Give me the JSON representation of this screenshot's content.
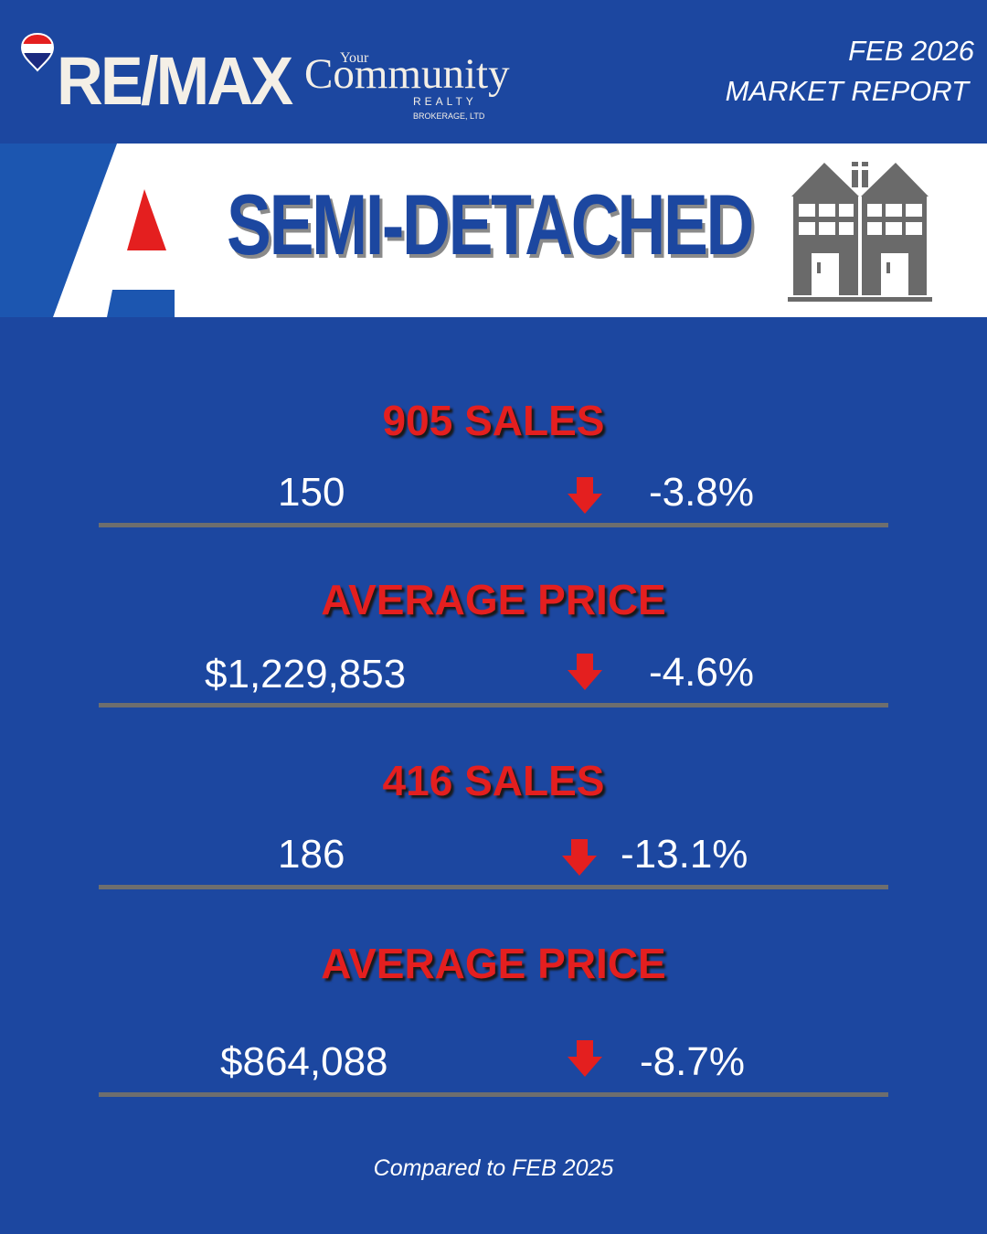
{
  "header": {
    "brand": "RE/MAX",
    "brand_sub_your": "Your",
    "brand_sub_community": "Community",
    "brand_sub_realty": "REALTY",
    "brand_sub_brokerage": "BROKERAGE, LTD",
    "report_date": "FEB 2026",
    "report_title": "MARKET REPORT"
  },
  "banner": {
    "title": "SEMI-DETACHED",
    "icon": "semi-detached-house-icon"
  },
  "stats": [
    {
      "title": "905 SALES",
      "value": "150",
      "trend": "down",
      "change": "-3.8%"
    },
    {
      "title": "AVERAGE PRICE",
      "value": "$1,229,853",
      "trend": "down",
      "change": "-4.6%"
    },
    {
      "title": "416 SALES",
      "value": "186",
      "trend": "down",
      "change": "-13.1%"
    },
    {
      "title": "AVERAGE PRICE",
      "value": "$864,088",
      "trend": "down",
      "change": "-8.7%"
    }
  ],
  "footnote": "Compared to FEB 2025",
  "colors": {
    "background": "#1c47a0",
    "accent_red": "#e41f1f",
    "divider": "#6e6e6e",
    "text": "#ffffff"
  }
}
